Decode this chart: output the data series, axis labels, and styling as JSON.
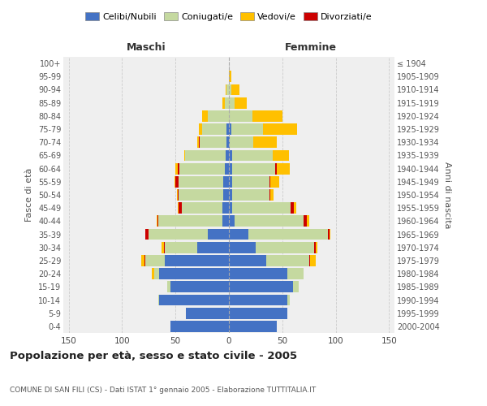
{
  "age_groups": [
    "0-4",
    "5-9",
    "10-14",
    "15-19",
    "20-24",
    "25-29",
    "30-34",
    "35-39",
    "40-44",
    "45-49",
    "50-54",
    "55-59",
    "60-64",
    "65-69",
    "70-74",
    "75-79",
    "80-84",
    "85-89",
    "90-94",
    "95-99",
    "100+"
  ],
  "birth_years": [
    "2000-2004",
    "1995-1999",
    "1990-1994",
    "1985-1989",
    "1980-1984",
    "1975-1979",
    "1970-1974",
    "1965-1969",
    "1960-1964",
    "1955-1959",
    "1950-1954",
    "1945-1949",
    "1940-1944",
    "1935-1939",
    "1930-1934",
    "1925-1929",
    "1920-1924",
    "1915-1919",
    "1910-1914",
    "1905-1909",
    "≤ 1904"
  ],
  "maschi": {
    "celibi": [
      55,
      40,
      65,
      55,
      65,
      60,
      30,
      20,
      6,
      6,
      5,
      5,
      4,
      3,
      2,
      2,
      0,
      0,
      0,
      0,
      0
    ],
    "coniugati": [
      0,
      0,
      1,
      3,
      5,
      18,
      30,
      55,
      60,
      38,
      42,
      42,
      42,
      38,
      25,
      23,
      20,
      4,
      2,
      0,
      0
    ],
    "vedovi": [
      0,
      0,
      0,
      0,
      2,
      3,
      2,
      0,
      1,
      1,
      1,
      1,
      2,
      1,
      2,
      3,
      5,
      2,
      1,
      0,
      0
    ],
    "divorziati": [
      0,
      0,
      0,
      0,
      0,
      1,
      1,
      3,
      1,
      3,
      1,
      3,
      2,
      0,
      1,
      0,
      0,
      0,
      0,
      0,
      0
    ]
  },
  "femmine": {
    "nubili": [
      45,
      55,
      55,
      60,
      55,
      35,
      25,
      18,
      5,
      3,
      3,
      3,
      3,
      3,
      1,
      2,
      0,
      0,
      0,
      0,
      0
    ],
    "coniugate": [
      0,
      0,
      2,
      5,
      15,
      40,
      55,
      75,
      65,
      55,
      35,
      35,
      40,
      38,
      22,
      30,
      22,
      5,
      2,
      0,
      0
    ],
    "vedove": [
      0,
      0,
      0,
      0,
      0,
      5,
      2,
      1,
      2,
      2,
      3,
      8,
      12,
      15,
      22,
      32,
      28,
      12,
      8,
      2,
      0
    ],
    "divorziate": [
      0,
      0,
      0,
      0,
      0,
      1,
      1,
      1,
      3,
      3,
      1,
      1,
      2,
      0,
      0,
      0,
      0,
      0,
      0,
      0,
      0
    ]
  },
  "colors": {
    "celibi": "#4472c4",
    "coniugati": "#c5d9a0",
    "vedovi": "#ffc000",
    "divorziati": "#cc0000"
  },
  "title": "Popolazione per età, sesso e stato civile - 2005",
  "subtitle": "COMUNE DI SAN FILI (CS) - Dati ISTAT 1° gennaio 2005 - Elaborazione TUTTITALIA.IT",
  "xlabel_left": "Maschi",
  "xlabel_right": "Femmine",
  "ylabel_left": "Fasce di età",
  "ylabel_right": "Anni di nascita",
  "xlim": 155,
  "bg_color": "#ffffff",
  "plot_bg": "#efefef",
  "grid_color": "#cccccc"
}
